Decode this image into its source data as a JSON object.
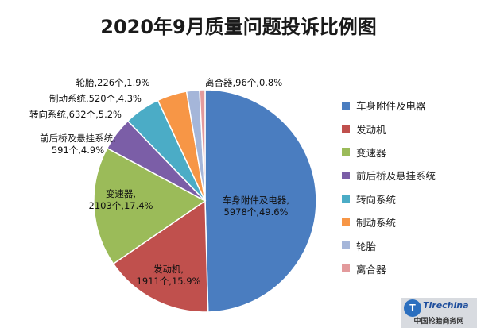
{
  "chart_data": {
    "type": "pie",
    "title": "2020年9月质量问题投诉比例图",
    "slices": [
      {
        "name": "车身附件及电器",
        "value": 5978,
        "percent": 49.6,
        "color": "#4a7dc0",
        "label_line1": "车身附件及电器,",
        "label_line2": "5978个,49.6%"
      },
      {
        "name": "发动机",
        "value": 1911,
        "percent": 15.9,
        "color": "#c0504d",
        "label_line1": "发动机,",
        "label_line2": "1911个,15.9%"
      },
      {
        "name": "变速器",
        "value": 2103,
        "percent": 17.4,
        "color": "#9bbb59",
        "label_line1": "变速器,",
        "label_line2": "2103个,17.4%"
      },
      {
        "name": "前后桥及悬挂系统",
        "value": 591,
        "percent": 4.9,
        "color": "#7b5ea7",
        "label_line1": "前后桥及悬挂系统,",
        "label_line2": "591个,4.9%"
      },
      {
        "name": "转向系统",
        "value": 632,
        "percent": 5.2,
        "color": "#4bacc6",
        "label_line1": "转向系统,632个,5.2%",
        "label_line2": ""
      },
      {
        "name": "制动系统",
        "value": 520,
        "percent": 4.3,
        "color": "#f79646",
        "label_line1": "制动系统,520个,4.3%",
        "label_line2": ""
      },
      {
        "name": "轮胎",
        "value": 226,
        "percent": 1.9,
        "color": "#a5b6d9",
        "label_line1": "轮胎,226个,1.9%",
        "label_line2": ""
      },
      {
        "name": "离合器",
        "value": 96,
        "percent": 0.8,
        "color": "#e39a9c",
        "label_line1": "离合器,96个,0.8%",
        "label_line2": ""
      }
    ],
    "legend_position": "right"
  },
  "watermark": {
    "logo_text": "T",
    "brand": "Tirechina",
    "site": "中国轮胎商务网"
  }
}
